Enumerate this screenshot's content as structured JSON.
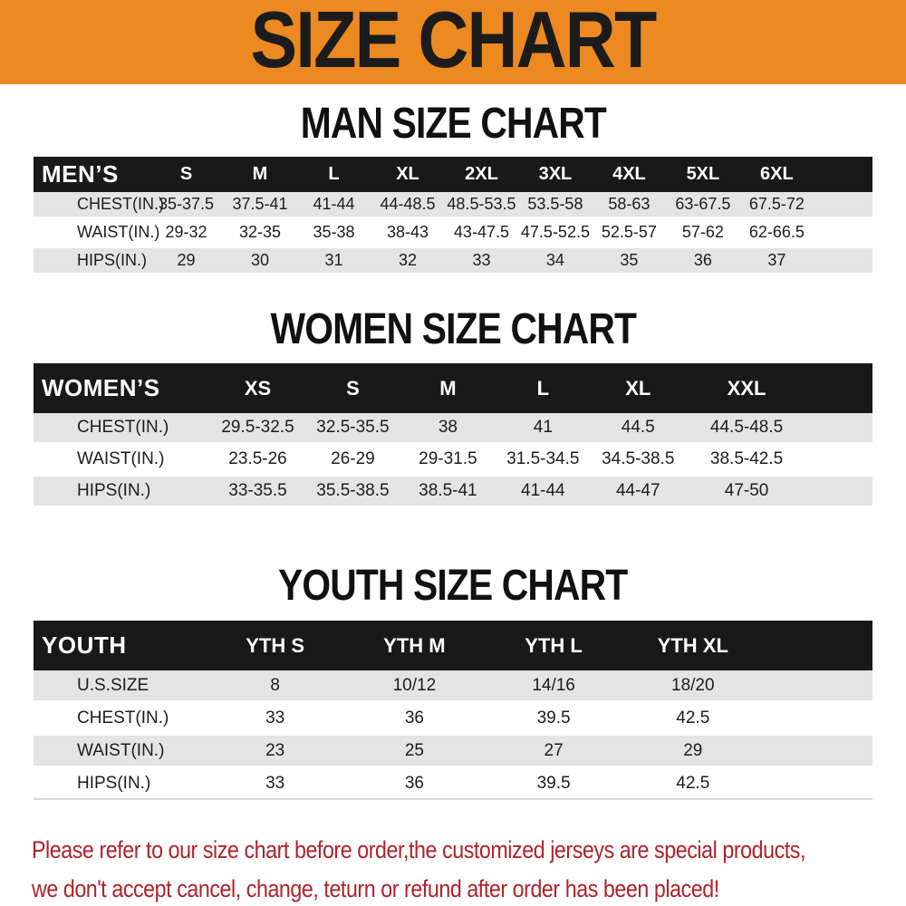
{
  "banner": {
    "title": "SIZE CHART",
    "bg_color": "#EC8920",
    "text_color": "#1C1C1C"
  },
  "sections": [
    {
      "id": "men",
      "heading": "MAN SIZE CHART",
      "header_label": "MEN’S",
      "columns": [
        "S",
        "M",
        "L",
        "XL",
        "2XL",
        "3XL",
        "4XL",
        "5XL",
        "6XL"
      ],
      "rows": [
        {
          "label": "CHEST(IN.)",
          "values": [
            "35-37.5",
            "37.5-41",
            "41-44",
            "44-48.5",
            "48.5-53.5",
            "53.5-58",
            "58-63",
            "63-67.5",
            "67.5-72"
          ]
        },
        {
          "label": "WAIST(IN.)",
          "values": [
            "29-32",
            "32-35",
            "35-38",
            "38-43",
            "43-47.5",
            "47.5-52.5",
            "52.5-57",
            "57-62",
            "62-66.5"
          ]
        },
        {
          "label": "HIPS(IN.)",
          "values": [
            "29",
            "30",
            "31",
            "32",
            "33",
            "34",
            "35",
            "36",
            "37"
          ]
        }
      ]
    },
    {
      "id": "women",
      "heading": "WOMEN SIZE CHART",
      "header_label": "WOMEN’S",
      "columns": [
        "XS",
        "S",
        "M",
        "L",
        "XL",
        "XXL"
      ],
      "rows": [
        {
          "label": "CHEST(IN.)",
          "values": [
            "29.5-32.5",
            "32.5-35.5",
            "38",
            "41",
            "44.5",
            "44.5-48.5"
          ]
        },
        {
          "label": "WAIST(IN.)",
          "values": [
            "23.5-26",
            "26-29",
            "29-31.5",
            "31.5-34.5",
            "34.5-38.5",
            "38.5-42.5"
          ]
        },
        {
          "label": "HIPS(IN.)",
          "values": [
            "33-35.5",
            "35.5-38.5",
            "38.5-41",
            "41-44",
            "44-47",
            "47-50"
          ]
        }
      ]
    },
    {
      "id": "youth",
      "heading": "YOUTH SIZE CHART",
      "header_label": "YOUTH",
      "columns": [
        "YTH S",
        "YTH M",
        "YTH L",
        "YTH XL"
      ],
      "rows": [
        {
          "label": "U.S.SIZE",
          "values": [
            "8",
            "10/12",
            "14/16",
            "18/20"
          ]
        },
        {
          "label": "CHEST(IN.)",
          "values": [
            "33",
            "36",
            "39.5",
            "42.5"
          ]
        },
        {
          "label": "WAIST(IN.)",
          "values": [
            "23",
            "25",
            "27",
            "29"
          ]
        },
        {
          "label": "HIPS(IN.)",
          "values": [
            "33",
            "36",
            "39.5",
            "42.5"
          ]
        }
      ]
    }
  ],
  "footer": {
    "line1": "Please refer to our size chart before order,the customized jerseys are special products,",
    "line2": "we don't accept cancel, change, teturn or refund after order has been placed!",
    "text_color": "#B0222A"
  },
  "colors": {
    "header_bar": "#191919",
    "row_gray": "#E4E4E4",
    "row_white": "#FFFFFF",
    "header_text": "#FFFFFF",
    "cell_text": "#1D1D1D"
  }
}
